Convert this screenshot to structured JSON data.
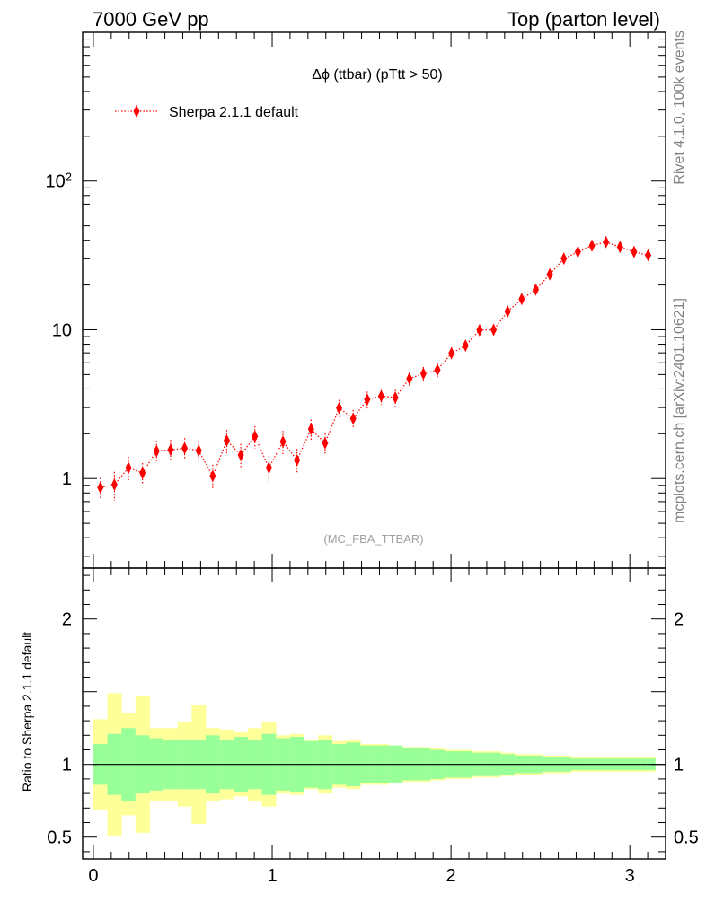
{
  "header": {
    "left": "7000 GeV pp",
    "right": "Top (parton level)"
  },
  "side_labels": {
    "rivet": "Rivet 4.1.0,  100k events",
    "mcplots": "mcplots.cern.ch [arXiv:2401.10621]"
  },
  "colors": {
    "series": "#ff0000",
    "band_inner": "#99ff99",
    "band_outer": "#ffff99",
    "axis": "#000000",
    "side_text": "#808080",
    "analysis_tag": "#a0a0a0"
  },
  "chart_data": [
    {
      "id": "main",
      "type": "scatter",
      "title": "Δϕ (ttbar) (pTtt > 50)",
      "annotation": "(MC_FBA_TTBAR)",
      "xlabel": "",
      "ylabel": "",
      "yscale": "log",
      "xlim": [
        -0.06,
        3.2
      ],
      "ylim": [
        0.25,
        1000
      ],
      "y_tick_labels": [
        {
          "value": 1,
          "label": "1"
        },
        {
          "value": 10,
          "label": "10"
        },
        {
          "value": 100,
          "label": "10",
          "exponent": "2"
        }
      ],
      "legend": {
        "position": "top-left",
        "entries": [
          "Sherpa 2.1.1 default"
        ]
      },
      "series": [
        {
          "name": "Sherpa 2.1.1 default",
          "x": [
            0.0393,
            0.1178,
            0.1963,
            0.2749,
            0.3534,
            0.432,
            0.5105,
            0.589,
            0.6676,
            0.7461,
            0.8247,
            0.9032,
            0.9817,
            1.0603,
            1.1388,
            1.2174,
            1.2959,
            1.3744,
            1.453,
            1.5315,
            1.6101,
            1.6886,
            1.7671,
            1.8457,
            1.9242,
            2.0028,
            2.0813,
            2.1598,
            2.2384,
            2.3169,
            2.3955,
            2.474,
            2.5525,
            2.6311,
            2.7096,
            2.7882,
            2.8667,
            2.9452,
            3.0238,
            3.1023
          ],
          "y": [
            0.87,
            0.91,
            1.18,
            1.09,
            1.53,
            1.56,
            1.6,
            1.54,
            1.04,
            1.8,
            1.44,
            1.92,
            1.18,
            1.77,
            1.33,
            2.15,
            1.73,
            2.98,
            2.53,
            3.4,
            3.58,
            3.5,
            4.7,
            5.07,
            5.37,
            6.96,
            7.83,
            9.95,
            10.0,
            13.3,
            16.1,
            18.6,
            23.6,
            30.1,
            33.4,
            36.8,
            38.9,
            36.1,
            33.4,
            31.7
          ],
          "yerr": [
            0.14,
            0.2,
            0.22,
            0.18,
            0.26,
            0.26,
            0.27,
            0.26,
            0.2,
            0.32,
            0.27,
            0.33,
            0.24,
            0.32,
            0.25,
            0.34,
            0.28,
            0.4,
            0.36,
            0.44,
            0.45,
            0.44,
            0.52,
            0.55,
            0.57,
            0.65,
            0.7,
            0.8,
            0.8,
            0.92,
            1.0,
            1.1,
            1.2,
            1.4,
            1.45,
            1.55,
            1.6,
            1.55,
            1.45,
            1.4
          ]
        }
      ]
    },
    {
      "id": "ratio",
      "type": "area",
      "ylabel": "Ratio to Sherpa 2.1.1 default",
      "xlim": [
        -0.06,
        3.2
      ],
      "ylim": [
        0.35,
        2.35
      ],
      "x_ticks": [
        0,
        1,
        2,
        3
      ],
      "x_tick_labels": [
        "0",
        "1",
        "2",
        "3"
      ],
      "y_ticks": [
        0.5,
        1,
        2
      ],
      "y_tick_labels": [
        "0.5",
        "1",
        "2"
      ],
      "reference_line": 1,
      "bin_edges": [
        0.0,
        0.0785,
        0.1571,
        0.2356,
        0.3142,
        0.3927,
        0.4712,
        0.5498,
        0.6283,
        0.7069,
        0.7854,
        0.8639,
        0.9425,
        1.021,
        1.0996,
        1.1781,
        1.2566,
        1.3352,
        1.4137,
        1.4923,
        1.5708,
        1.6493,
        1.7279,
        1.8064,
        1.885,
        1.9635,
        2.042,
        2.1206,
        2.1991,
        2.2777,
        2.3562,
        2.4347,
        2.5133,
        2.5918,
        2.6704,
        2.7489,
        2.8274,
        2.906,
        2.9845,
        3.0631,
        3.1416
      ],
      "series": [
        {
          "name": "inner band",
          "lower": [
            0.86,
            0.79,
            0.75,
            0.8,
            0.82,
            0.83,
            0.83,
            0.83,
            0.8,
            0.83,
            0.81,
            0.83,
            0.79,
            0.82,
            0.81,
            0.84,
            0.83,
            0.86,
            0.85,
            0.87,
            0.87,
            0.87,
            0.89,
            0.89,
            0.9,
            0.91,
            0.91,
            0.92,
            0.92,
            0.93,
            0.94,
            0.94,
            0.95,
            0.95,
            0.96,
            0.96,
            0.96,
            0.96,
            0.96,
            0.96
          ],
          "upper": [
            1.14,
            1.21,
            1.25,
            1.2,
            1.18,
            1.17,
            1.17,
            1.17,
            1.2,
            1.17,
            1.19,
            1.17,
            1.21,
            1.18,
            1.19,
            1.16,
            1.17,
            1.14,
            1.15,
            1.13,
            1.13,
            1.13,
            1.11,
            1.11,
            1.1,
            1.09,
            1.09,
            1.08,
            1.08,
            1.07,
            1.06,
            1.06,
            1.05,
            1.05,
            1.04,
            1.04,
            1.04,
            1.04,
            1.04,
            1.04
          ]
        },
        {
          "name": "outer band",
          "lower": [
            0.69,
            0.51,
            0.65,
            0.53,
            0.75,
            0.75,
            0.71,
            0.59,
            0.75,
            0.76,
            0.78,
            0.75,
            0.71,
            0.8,
            0.79,
            0.83,
            0.8,
            0.84,
            0.83,
            0.86,
            0.86,
            0.87,
            0.88,
            0.88,
            0.89,
            0.9,
            0.9,
            0.91,
            0.91,
            0.92,
            0.93,
            0.93,
            0.94,
            0.94,
            0.95,
            0.95,
            0.95,
            0.95,
            0.95,
            0.95
          ],
          "upper": [
            1.31,
            1.49,
            1.35,
            1.47,
            1.25,
            1.25,
            1.29,
            1.41,
            1.25,
            1.24,
            1.22,
            1.25,
            1.29,
            1.2,
            1.21,
            1.17,
            1.2,
            1.16,
            1.17,
            1.14,
            1.14,
            1.13,
            1.12,
            1.12,
            1.11,
            1.1,
            1.1,
            1.09,
            1.09,
            1.08,
            1.07,
            1.07,
            1.06,
            1.06,
            1.05,
            1.05,
            1.05,
            1.05,
            1.05,
            1.05
          ]
        }
      ]
    }
  ]
}
